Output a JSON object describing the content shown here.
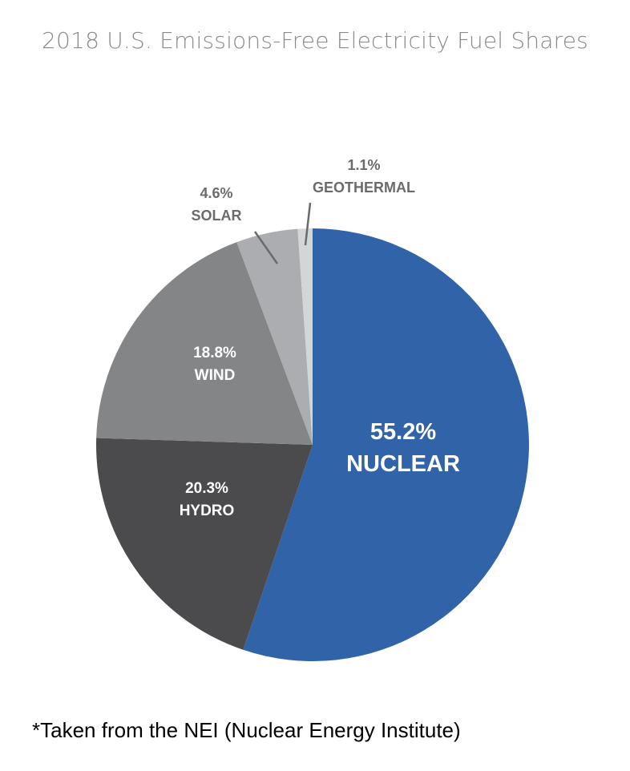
{
  "chart_data": {
    "type": "pie",
    "title": "2018 U.S. Emissions-Free Electricity Fuel Shares",
    "slices": [
      {
        "name": "NUCLEAR",
        "value": 55.2,
        "label": "55.2%",
        "color": "#3063a8",
        "label_color": "#ffffff",
        "label_position": "inside"
      },
      {
        "name": "HYDRO",
        "value": 20.3,
        "label": "20.3%",
        "color": "#4b4b4d",
        "label_color": "#ffffff",
        "label_position": "inside"
      },
      {
        "name": "WIND",
        "value": 18.8,
        "label": "18.8%",
        "color": "#848587",
        "label_color": "#ffffff",
        "label_position": "inside"
      },
      {
        "name": "SOLAR",
        "value": 4.6,
        "label": "4.6%",
        "color": "#acadb0",
        "label_color": "#6b6b6e",
        "label_position": "outside"
      },
      {
        "name": "GEOTHERMAL",
        "value": 1.1,
        "label": "1.1%",
        "color": "#d4d5d7",
        "label_color": "#6b6b6e",
        "label_position": "outside"
      }
    ],
    "start": "top",
    "direction": "clockwise"
  },
  "footnote": "*Taken from the NEI (Nuclear Energy Institute)"
}
